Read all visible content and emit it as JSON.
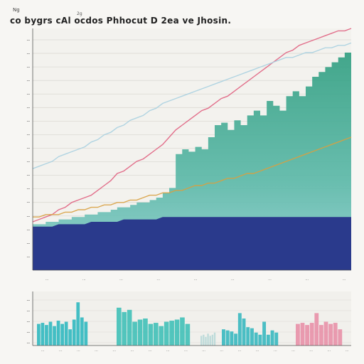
{
  "header": {
    "top_label": "Ng",
    "title": "co bygrs cAl ocdos Phhocut D  2ea ve Jhosin.",
    "subtitle": "2g"
  },
  "chart_data": [
    {
      "type": "area",
      "title": "",
      "xlabel": "",
      "ylabel": "",
      "grid": true,
      "yticks": [
        "--",
        "--",
        "--",
        "--",
        "--",
        "--",
        "--",
        "--",
        "--",
        "--",
        "--",
        "--",
        "--",
        "--",
        "--",
        "--",
        "--"
      ],
      "xticks": [
        "...",
        "...",
        "...",
        "...",
        "...",
        "...",
        "...",
        "...",
        "..."
      ],
      "x": [
        0,
        1,
        2,
        3,
        4,
        5,
        6,
        7,
        8,
        9,
        10,
        11,
        12,
        13,
        14,
        15,
        16,
        17,
        18,
        19,
        20,
        21,
        22,
        23,
        24,
        25,
        26,
        27,
        28,
        29,
        30,
        31,
        32,
        33,
        34,
        35,
        36,
        37,
        38,
        39,
        40,
        41,
        42,
        43,
        44,
        45,
        46,
        47,
        48,
        49
      ],
      "ylim": [
        0,
        100
      ],
      "series": [
        {
          "name": "",
          "kind": "area-band",
          "color": "#2a3a8c",
          "values": [
            18,
            18,
            18,
            18,
            19,
            19,
            19,
            19,
            19,
            20,
            20,
            20,
            20,
            20,
            21,
            21,
            21,
            21,
            21,
            21,
            22,
            22,
            22,
            22,
            22,
            22,
            22,
            22,
            22,
            22,
            22,
            22,
            22,
            22,
            22,
            22,
            22,
            22,
            22,
            22,
            22,
            22,
            22,
            22,
            22,
            22,
            22,
            22,
            22,
            22
          ]
        },
        {
          "name": "",
          "kind": "area-step",
          "color": "#3a9a8a",
          "values": [
            19,
            19,
            20,
            20,
            21,
            21,
            22,
            22,
            23,
            23,
            24,
            24,
            25,
            26,
            26,
            27,
            28,
            28,
            29,
            30,
            32,
            34,
            48,
            50,
            49,
            51,
            50,
            55,
            60,
            61,
            58,
            62,
            60,
            64,
            66,
            64,
            70,
            68,
            66,
            72,
            74,
            72,
            76,
            80,
            82,
            84,
            86,
            88,
            90,
            90
          ]
        },
        {
          "name": "",
          "kind": "line",
          "color": "#e06080",
          "values": [
            20,
            21,
            22,
            23,
            25,
            26,
            28,
            29,
            30,
            31,
            33,
            35,
            37,
            40,
            41,
            43,
            45,
            46,
            48,
            50,
            52,
            55,
            58,
            60,
            62,
            64,
            66,
            67,
            69,
            71,
            72,
            74,
            76,
            78,
            80,
            82,
            84,
            86,
            88,
            90,
            91,
            93,
            94,
            95,
            96,
            97,
            98,
            99,
            99,
            100
          ]
        },
        {
          "name": "",
          "kind": "line",
          "color": "#a8d0e0",
          "values": [
            42,
            43,
            44,
            45,
            47,
            48,
            49,
            50,
            51,
            53,
            54,
            56,
            57,
            59,
            60,
            62,
            63,
            64,
            66,
            67,
            69,
            70,
            71,
            72,
            73,
            74,
            75,
            76,
            77,
            78,
            79,
            80,
            81,
            82,
            83,
            84,
            85,
            86,
            87,
            88,
            88,
            89,
            90,
            90,
            91,
            92,
            92,
            93,
            93,
            94
          ]
        },
        {
          "name": "",
          "kind": "line",
          "color": "#d8a040",
          "values": [
            22,
            22,
            23,
            23,
            23,
            24,
            24,
            25,
            25,
            26,
            26,
            27,
            27,
            28,
            28,
            29,
            29,
            30,
            31,
            31,
            32,
            32,
            33,
            33,
            34,
            35,
            35,
            36,
            36,
            37,
            38,
            38,
            39,
            40,
            40,
            41,
            42,
            43,
            44,
            45,
            46,
            47,
            48,
            49,
            50,
            51,
            52,
            53,
            54,
            55
          ]
        }
      ]
    },
    {
      "type": "bar",
      "title": "",
      "xlabel": "",
      "ylabel": "",
      "yticks": [
        "--",
        "--",
        "--",
        "--",
        "--"
      ],
      "xticks": [
        "...",
        "...",
        "...",
        "...",
        "...",
        "...",
        "...",
        "...",
        "...",
        "...",
        "...",
        "...",
        "...",
        "...",
        "...",
        "...",
        "...",
        "..."
      ],
      "ylim": [
        0,
        100
      ],
      "categories": [
        "g1",
        "g2",
        "g3",
        "g4",
        "g5"
      ],
      "series": [
        {
          "name": "",
          "color": "#30b8b8",
          "values": [
            [
              40,
              42,
              38,
              44,
              36,
              46,
              40,
              44,
              30,
              48,
              80,
              52,
              44
            ],
            [
              70,
              62,
              66,
              44,
              48,
              50,
              40,
              42,
              36,
              44,
              46,
              48,
              52,
              40
            ],
            [
              18,
              20,
              16,
              22,
              18,
              20,
              24
            ],
            [
              30,
              28,
              26,
              22,
              60,
              50,
              34,
              32,
              24,
              20,
              44,
              20,
              28,
              24
            ],
            [
              40,
              42,
              38,
              42,
              60,
              38,
              44,
              40,
              42,
              30
            ]
          ]
        }
      ]
    }
  ]
}
